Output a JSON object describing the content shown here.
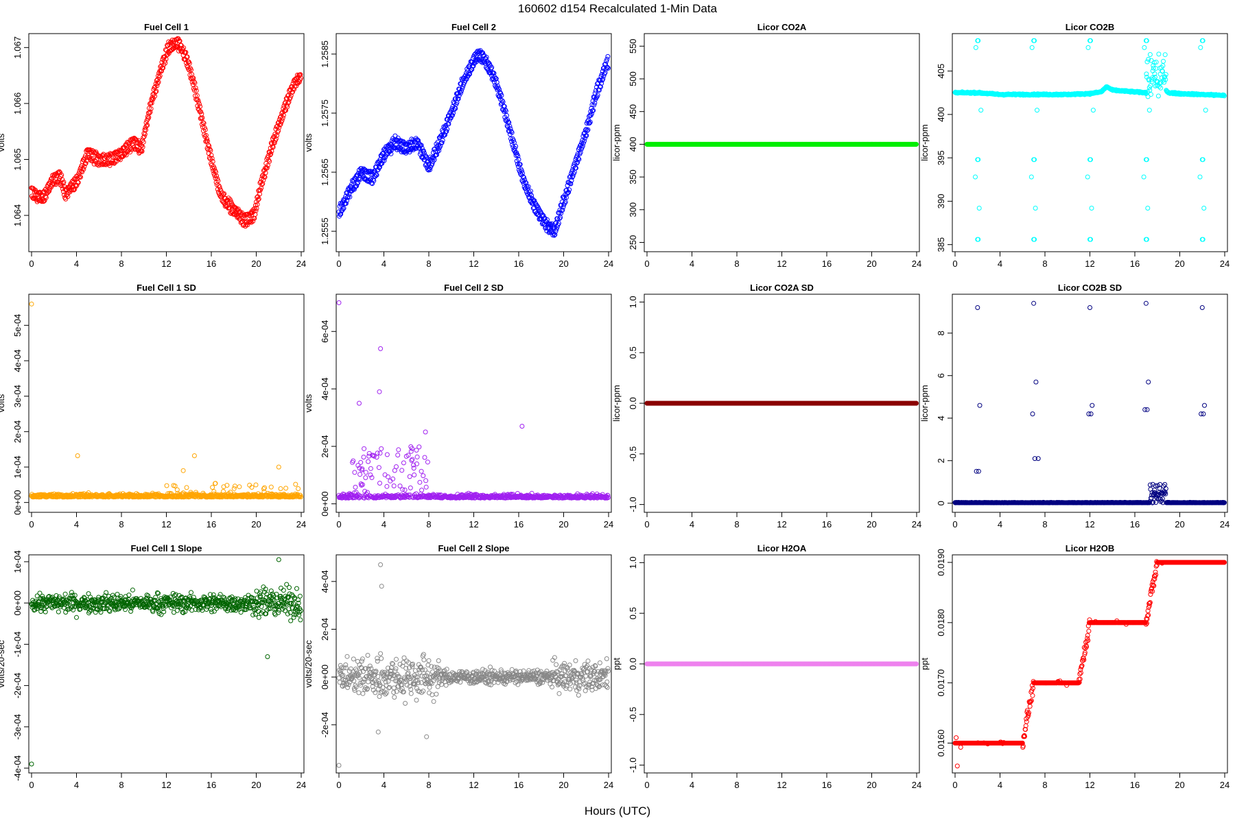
{
  "title": "160602   d154   Recalculated 1-Min Data",
  "xlabel": "Hours (UTC)",
  "chart_data": [
    {
      "type": "scatter",
      "title": "Fuel Cell 1",
      "ylabel": "volts",
      "color": "#ff0000",
      "xlim": [
        0,
        24
      ],
      "ylim": [
        1.0634,
        1.0672
      ],
      "x_ticks": [
        0,
        4,
        8,
        12,
        16,
        20,
        24
      ],
      "y_ticks": [
        "1.064",
        "1.065",
        "1.066",
        "1.067"
      ],
      "y_tick_values": [
        1.064,
        1.065,
        1.066,
        1.067
      ],
      "series": [
        {
          "x": [
            0,
            1,
            1.8,
            2.5,
            3,
            4,
            5,
            6,
            7,
            8,
            9,
            9.8,
            10.5,
            11.5,
            12.2,
            13,
            13.8,
            14.5,
            15.5,
            16.5,
            17,
            18,
            19,
            19.8,
            20.5,
            21.5,
            22.5,
            23.5,
            24
          ],
          "y": [
            1.0644,
            1.0643,
            1.0646,
            1.0647,
            1.0644,
            1.0646,
            1.0651,
            1.065,
            1.065,
            1.0651,
            1.0653,
            1.0652,
            1.0659,
            1.0666,
            1.067,
            1.0671,
            1.0668,
            1.0663,
            1.0654,
            1.0646,
            1.0643,
            1.0641,
            1.0639,
            1.064,
            1.0646,
            1.0653,
            1.0659,
            1.0664,
            1.0665
          ]
        }
      ]
    },
    {
      "type": "scatter",
      "title": "Fuel Cell 2",
      "ylabel": "volts",
      "color": "#0000ff",
      "xlim": [
        0,
        24
      ],
      "ylim": [
        1.2552,
        1.2588
      ],
      "x_ticks": [
        0,
        4,
        8,
        12,
        16,
        20,
        24
      ],
      "y_ticks": [
        "1.2555",
        "1.2565",
        "1.2575",
        "1.2585"
      ],
      "y_tick_values": [
        1.2555,
        1.2565,
        1.2575,
        1.2585
      ],
      "series": [
        {
          "x": [
            0,
            1,
            2,
            3,
            4,
            5,
            6,
            7,
            7.5,
            8,
            9,
            10,
            11,
            12,
            12.5,
            13,
            13.8,
            14.5,
            15.5,
            16.5,
            17.5,
            18.5,
            19.2,
            20,
            21,
            22,
            23,
            24
          ],
          "y": [
            1.2558,
            1.2562,
            1.2565,
            1.2564,
            1.2568,
            1.257,
            1.2569,
            1.257,
            1.2568,
            1.2566,
            1.257,
            1.2575,
            1.258,
            1.2584,
            1.2585,
            1.2584,
            1.2581,
            1.2577,
            1.257,
            1.2563,
            1.2559,
            1.2556,
            1.2555,
            1.256,
            1.2566,
            1.2572,
            1.2579,
            1.2584
          ]
        }
      ]
    },
    {
      "type": "scatter",
      "title": "Licor CO2A",
      "ylabel": "licor-ppm",
      "color": "#00ee00",
      "xlim": [
        0,
        24
      ],
      "ylim": [
        240,
        565
      ],
      "x_ticks": [
        0,
        4,
        8,
        12,
        16,
        20,
        24
      ],
      "y_ticks": [
        "250",
        "300",
        "350",
        "400",
        "450",
        "500",
        "550"
      ],
      "y_tick_values": [
        250,
        300,
        350,
        400,
        450,
        500,
        550
      ],
      "series": [
        {
          "x": [
            0,
            24
          ],
          "y": [
            400,
            400
          ]
        }
      ]
    },
    {
      "type": "scatter",
      "title": "Licor CO2B",
      "ylabel": "licor-ppm",
      "color": "#00ffff",
      "xlim": [
        0,
        24
      ],
      "ylim": [
        384.5,
        409
      ],
      "x_ticks": [
        0,
        4,
        8,
        12,
        16,
        20,
        24
      ],
      "y_ticks": [
        "385",
        "390",
        "395",
        "400",
        "405"
      ],
      "y_tick_values": [
        385,
        390,
        395,
        400,
        405
      ],
      "series": [
        {
          "x": [
            0,
            2,
            4,
            6,
            7,
            8,
            10,
            12,
            13,
            13.5,
            14,
            15,
            16,
            17,
            18,
            19,
            20,
            22,
            24
          ],
          "y": [
            402.5,
            402.5,
            402.3,
            402.3,
            402.3,
            402.3,
            402.3,
            402.4,
            402.6,
            403.2,
            402.8,
            402.7,
            402.6,
            402.5,
            404,
            402.5,
            402.4,
            402.3,
            402.2
          ]
        }
      ]
    },
    {
      "type": "scatter",
      "title": "Fuel Cell 1 SD",
      "ylabel": "volts",
      "color": "#ffa500",
      "xlim": [
        0,
        24
      ],
      "ylim": [
        -2e-05,
        0.00058
      ],
      "x_ticks": [
        0,
        4,
        8,
        12,
        16,
        20,
        24
      ],
      "y_ticks": [
        "0e+00",
        "1e-04",
        "2e-04",
        "3e-04",
        "4e-04",
        "5e-04"
      ],
      "y_tick_values": [
        0,
        0.0001,
        0.0002,
        0.0003,
        0.0004,
        0.0005
      ],
      "series": [
        {
          "x": [
            0,
            24
          ],
          "y": [
            1.5e-05,
            1.5e-05
          ]
        }
      ]
    },
    {
      "type": "scatter",
      "title": "Fuel Cell 2 SD",
      "ylabel": "volts",
      "color": "#a020f0",
      "xlim": [
        0,
        24
      ],
      "ylim": [
        -2e-05,
        0.00072
      ],
      "x_ticks": [
        0,
        4,
        8,
        12,
        16,
        20,
        24
      ],
      "y_ticks": [
        "0e+00",
        "2e-04",
        "4e-04",
        "6e-04"
      ],
      "y_tick_values": [
        0,
        0.0002,
        0.0004,
        0.0006
      ],
      "series": [
        {
          "x": [
            0,
            24
          ],
          "y": [
            2e-05,
            2e-05
          ]
        }
      ]
    },
    {
      "type": "scatter",
      "title": "Licor CO2A SD",
      "ylabel": "licor-ppm",
      "color": "#8b0000",
      "xlim": [
        0,
        24
      ],
      "ylim": [
        -1.05,
        1.05
      ],
      "x_ticks": [
        0,
        4,
        8,
        12,
        16,
        20,
        24
      ],
      "y_ticks": [
        "-1.0",
        "-0.5",
        "0.0",
        "0.5",
        "1.0"
      ],
      "y_tick_values": [
        -1,
        -0.5,
        0,
        0.5,
        1
      ],
      "series": [
        {
          "x": [
            0,
            24
          ],
          "y": [
            0,
            0
          ]
        }
      ]
    },
    {
      "type": "scatter",
      "title": "Licor CO2B SD",
      "ylabel": "licor-ppm",
      "color": "#000080",
      "xlim": [
        0,
        24
      ],
      "ylim": [
        -0.3,
        9.7
      ],
      "x_ticks": [
        0,
        4,
        8,
        12,
        16,
        20,
        24
      ],
      "y_ticks": [
        "0",
        "2",
        "4",
        "6",
        "8"
      ],
      "y_tick_values": [
        0,
        2,
        4,
        6,
        8
      ],
      "series": [
        {
          "x": [
            2,
            2.2,
            7,
            7.2,
            12,
            12.2,
            17,
            17.2,
            22,
            22.2,
            2.1,
            7.1,
            12.1,
            17.1,
            22.1,
            1.9,
            7.4,
            6.9,
            11.9,
            16.9,
            21.9
          ],
          "y": [
            9.2,
            4.6,
            9.4,
            5.7,
            9.2,
            4.6,
            9.4,
            5.7,
            9.2,
            4.6,
            1.5,
            2.1,
            4.2,
            4.4,
            4.2,
            1.5,
            2.1,
            4.2,
            4.2,
            4.4,
            4.2
          ]
        }
      ]
    },
    {
      "type": "scatter",
      "title": "Fuel Cell 1 Slope",
      "ylabel": "volts/20-sec",
      "color": "#006400",
      "xlim": [
        0,
        24
      ],
      "ylim": [
        -0.000405,
        0.00011
      ],
      "x_ticks": [
        0,
        4,
        8,
        12,
        16,
        20,
        24
      ],
      "y_ticks": [
        "-4e-04",
        "-3e-04",
        "-2e-04",
        "-1e-04",
        "0e+00",
        "1e-04"
      ],
      "y_tick_values": [
        -0.0004,
        -0.0003,
        -0.0002,
        -0.0001,
        0,
        0.0001
      ],
      "series": [
        {
          "x": [
            0,
            24
          ],
          "y": [
            0,
            0
          ]
        }
      ]
    },
    {
      "type": "scatter",
      "title": "Fuel Cell 2 Slope",
      "ylabel": "volts/20-sec",
      "color": "#888888",
      "xlim": [
        0,
        24
      ],
      "ylim": [
        -0.00039,
        0.0005
      ],
      "x_ticks": [
        0,
        4,
        8,
        12,
        16,
        20,
        24
      ],
      "y_ticks": [
        "-2e-04",
        "0e+00",
        "2e-04",
        "4e-04"
      ],
      "y_tick_values": [
        -0.0002,
        0,
        0.0002,
        0.0004
      ],
      "series": [
        {
          "x": [
            0,
            24
          ],
          "y": [
            0,
            0
          ]
        }
      ]
    },
    {
      "type": "scatter",
      "title": "Licor H2OA",
      "ylabel": "ppt",
      "color": "#ee82ee",
      "xlim": [
        0,
        24
      ],
      "ylim": [
        -1.05,
        1.05
      ],
      "x_ticks": [
        0,
        4,
        8,
        12,
        16,
        20,
        24
      ],
      "y_ticks": [
        "-1.0",
        "-0.5",
        "0.0",
        "0.5",
        "1.0"
      ],
      "y_tick_values": [
        -1,
        -0.5,
        0,
        0.5,
        1
      ],
      "series": [
        {
          "x": [
            0,
            24
          ],
          "y": [
            0,
            0
          ]
        }
      ]
    },
    {
      "type": "scatter",
      "title": "Licor H2OB",
      "ylabel": "ppt",
      "color": "#ff0000",
      "xlim": [
        0,
        24
      ],
      "ylim": [
        0.01555,
        0.01908
      ],
      "x_ticks": [
        0,
        4,
        8,
        12,
        16,
        20,
        24
      ],
      "y_ticks": [
        "0.0160",
        "0.0170",
        "0.0180",
        "0.0190"
      ],
      "y_tick_values": [
        0.016,
        0.017,
        0.018,
        0.019
      ],
      "series": [
        {
          "x": [
            0,
            6,
            7,
            11,
            12,
            17,
            18,
            24
          ],
          "y": [
            0.016,
            0.016,
            0.017,
            0.017,
            0.018,
            0.018,
            0.019,
            0.019
          ]
        }
      ]
    }
  ]
}
